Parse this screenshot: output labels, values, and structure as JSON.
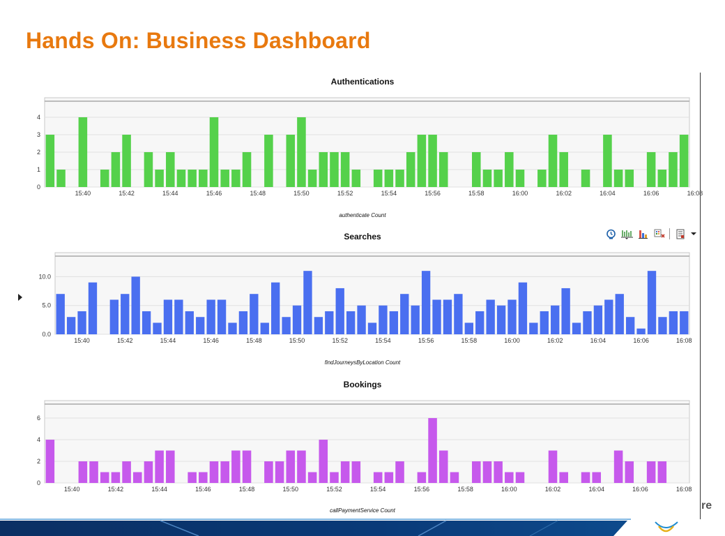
{
  "slide": {
    "title": "Hands On: Business Dashboard",
    "brand_fragment": "re"
  },
  "toolbar": {
    "items": [
      "clock-icon",
      "bar-chart-icon",
      "column-chart-icon",
      "grid-chart-icon",
      "export-icon",
      "dropdown-icon"
    ]
  },
  "chart_data": [
    {
      "type": "bar",
      "title": "Authentications",
      "xlabel": "authenticate  Count",
      "ylabel": "",
      "color": "#55d14b",
      "ylim": [
        0,
        4.8
      ],
      "yticks": [
        {
          "v": 0,
          "label": "0"
        },
        {
          "v": 1,
          "label": "1"
        },
        {
          "v": 2,
          "label": "2"
        },
        {
          "v": 3,
          "label": "3"
        },
        {
          "v": 4,
          "label": "4"
        }
      ],
      "xticks": [
        {
          "i": 3,
          "label": "15:40"
        },
        {
          "i": 7,
          "label": "15:42"
        },
        {
          "i": 11,
          "label": "15:44"
        },
        {
          "i": 15,
          "label": "15:46"
        },
        {
          "i": 19,
          "label": "15:48"
        },
        {
          "i": 23,
          "label": "15:50"
        },
        {
          "i": 27,
          "label": "15:52"
        },
        {
          "i": 31,
          "label": "15:54"
        },
        {
          "i": 35,
          "label": "15:56"
        },
        {
          "i": 39,
          "label": "15:58"
        },
        {
          "i": 43,
          "label": "16:00"
        },
        {
          "i": 47,
          "label": "16:02"
        },
        {
          "i": 51,
          "label": "16:04"
        },
        {
          "i": 55,
          "label": "16:06"
        },
        {
          "i": 59,
          "label": "16:08"
        }
      ],
      "values": [
        3,
        1,
        0,
        4,
        0,
        1,
        2,
        3,
        0,
        2,
        1,
        2,
        1,
        1,
        1,
        4,
        1,
        1,
        2,
        0,
        3,
        0,
        3,
        4,
        1,
        2,
        2,
        2,
        1,
        0,
        1,
        1,
        1,
        2,
        3,
        3,
        2,
        0,
        0,
        2,
        1,
        1,
        2,
        1,
        0,
        1,
        3,
        2,
        0,
        1,
        0,
        3,
        1,
        1,
        0,
        2,
        1,
        2,
        3
      ]
    },
    {
      "type": "bar",
      "title": "Searches",
      "xlabel": "findJourneysByLocation  Count",
      "ylabel": "",
      "color": "#4a6ff0",
      "ylim": [
        0,
        13.2
      ],
      "yticks": [
        {
          "v": 0,
          "label": "0.0"
        },
        {
          "v": 5,
          "label": "5.0"
        },
        {
          "v": 10,
          "label": "10.0"
        }
      ],
      "xticks": [
        {
          "i": 2,
          "label": "15:40"
        },
        {
          "i": 6,
          "label": "15:42"
        },
        {
          "i": 10,
          "label": "15:44"
        },
        {
          "i": 14,
          "label": "15:46"
        },
        {
          "i": 18,
          "label": "15:48"
        },
        {
          "i": 22,
          "label": "15:50"
        },
        {
          "i": 26,
          "label": "15:52"
        },
        {
          "i": 30,
          "label": "15:54"
        },
        {
          "i": 34,
          "label": "15:56"
        },
        {
          "i": 38,
          "label": "15:58"
        },
        {
          "i": 42,
          "label": "16:00"
        },
        {
          "i": 46,
          "label": "16:02"
        },
        {
          "i": 50,
          "label": "16:04"
        },
        {
          "i": 54,
          "label": "16:06"
        },
        {
          "i": 58,
          "label": "16:08"
        }
      ],
      "values": [
        7,
        3,
        4,
        9,
        0,
        6,
        7,
        10,
        4,
        2,
        6,
        6,
        4,
        3,
        6,
        6,
        2,
        4,
        7,
        2,
        9,
        3,
        5,
        11,
        3,
        4,
        8,
        4,
        5,
        2,
        5,
        4,
        7,
        5,
        11,
        6,
        6,
        7,
        2,
        4,
        6,
        5,
        6,
        9,
        2,
        4,
        5,
        8,
        2,
        4,
        5,
        6,
        7,
        3,
        1,
        11,
        3,
        4,
        4
      ]
    },
    {
      "type": "bar",
      "title": "Bookings",
      "xlabel": "callPaymentService  Count",
      "ylabel": "",
      "color": "#c659ec",
      "ylim": [
        0,
        7.1
      ],
      "yticks": [
        {
          "v": 0,
          "label": "0"
        },
        {
          "v": 2,
          "label": "2"
        },
        {
          "v": 4,
          "label": "4"
        },
        {
          "v": 6,
          "label": "6"
        }
      ],
      "xticks": [
        {
          "i": 2,
          "label": "15:40"
        },
        {
          "i": 6,
          "label": "15:42"
        },
        {
          "i": 10,
          "label": "15:44"
        },
        {
          "i": 14,
          "label": "15:46"
        },
        {
          "i": 18,
          "label": "15:48"
        },
        {
          "i": 22,
          "label": "15:50"
        },
        {
          "i": 26,
          "label": "15:52"
        },
        {
          "i": 30,
          "label": "15:54"
        },
        {
          "i": 34,
          "label": "15:56"
        },
        {
          "i": 38,
          "label": "15:58"
        },
        {
          "i": 42,
          "label": "16:00"
        },
        {
          "i": 46,
          "label": "16:02"
        },
        {
          "i": 50,
          "label": "16:04"
        },
        {
          "i": 54,
          "label": "16:06"
        },
        {
          "i": 58,
          "label": "16:08"
        }
      ],
      "values": [
        4,
        0,
        0,
        2,
        2,
        1,
        1,
        2,
        1,
        2,
        3,
        3,
        0,
        1,
        1,
        2,
        2,
        3,
        3,
        0,
        2,
        2,
        3,
        3,
        1,
        4,
        1,
        2,
        2,
        0,
        1,
        1,
        2,
        0,
        1,
        6,
        3,
        1,
        0,
        2,
        2,
        2,
        1,
        1,
        0,
        0,
        3,
        1,
        0,
        1,
        1,
        0,
        3,
        2,
        0,
        2,
        2,
        0,
        0
      ]
    }
  ]
}
